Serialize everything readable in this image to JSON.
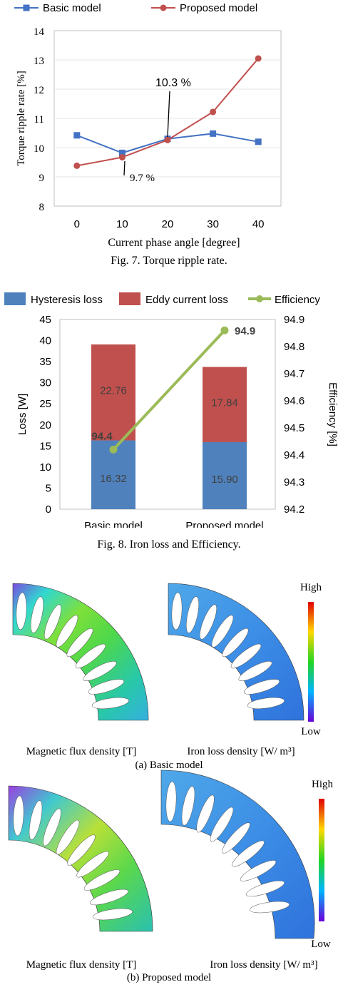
{
  "chart_data": [
    {
      "type": "line",
      "ylabel": "Torque ripple rate [%]",
      "xlabel": "Current phase angle [degree]",
      "x": [
        0,
        10,
        20,
        30,
        40
      ],
      "ylim": [
        8,
        14
      ],
      "yticks": [
        8,
        9,
        10,
        11,
        12,
        13,
        14
      ],
      "legend_position": "top",
      "series": [
        {
          "name": "Basic model",
          "values": [
            10.42,
            9.82,
            10.3,
            10.48,
            10.2
          ],
          "color": "#4472c4",
          "marker": "square"
        },
        {
          "name": "Proposed model",
          "values": [
            9.38,
            9.67,
            10.26,
            11.22,
            13.05
          ],
          "color": "#c0504d",
          "marker": "circle"
        }
      ],
      "annotations": [
        "10.3 %",
        "9.7 %"
      ],
      "caption": "Fig. 7. Torque ripple rate."
    },
    {
      "type": "bar",
      "stacked": true,
      "categories": [
        "Basic model",
        "Proposed model"
      ],
      "ylabel": "Loss [W]",
      "y2label": "Efficiency [%]",
      "ylim": [
        0,
        45
      ],
      "yticks": [
        0,
        5,
        10,
        15,
        20,
        25,
        30,
        35,
        40,
        45
      ],
      "y2lim": [
        94.2,
        94.9
      ],
      "y2ticks": [
        "94.2",
        "94.3",
        "94.4",
        "94.5",
        "94.6",
        "94.7",
        "94.8",
        "94.9"
      ],
      "legend_position": "top",
      "series": [
        {
          "name": "Hysteresis loss",
          "values": [
            16.32,
            15.9
          ],
          "labels": [
            "16.32",
            "15.90"
          ],
          "color": "#4f81bd"
        },
        {
          "name": "Eddy current loss",
          "values": [
            22.76,
            17.84
          ],
          "labels": [
            "22.76",
            "17.84"
          ],
          "color": "#c0504d"
        },
        {
          "name": "Efficiency",
          "values": [
            94.42,
            94.86
          ],
          "labels": [
            "94.4",
            "94.9"
          ],
          "color": "#9bbb59",
          "axis": "secondary"
        }
      ],
      "caption": "Fig. 8. Iron loss and Efficiency."
    }
  ],
  "fig9": {
    "scale_high": "High",
    "scale_low": "Low",
    "label_flux": "Magnetic flux density [T]",
    "label_loss": "Iron loss density [W/ m³]",
    "sub_a": "(a) Basic model",
    "sub_b": "(b) Proposed model"
  }
}
